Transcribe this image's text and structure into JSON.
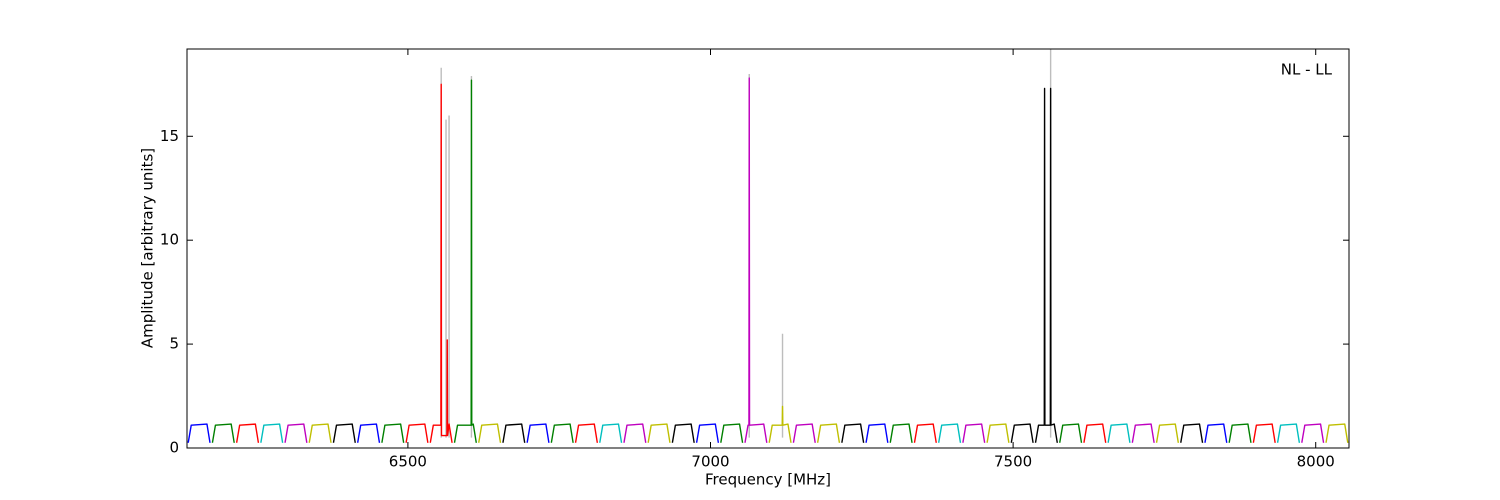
{
  "chart_data": {
    "type": "line",
    "annotation": "NL - LL",
    "x_label": "Frequency [MHz]",
    "y_label": "Amplitude [arbitrary units]",
    "xlim": [
      6135,
      8055
    ],
    "ylim": [
      0,
      19.2
    ],
    "xticks": [
      6500,
      7000,
      7500,
      8000
    ],
    "yticks": [
      0,
      5,
      10,
      15
    ],
    "series": [
      {
        "color": "#bdbdbd",
        "x": [
          6555,
          6555,
          6555,
          6563,
          6563,
          6563,
          6568,
          6568,
          6568,
          6605,
          6605,
          6605,
          7064,
          7064,
          7064,
          7119,
          7119,
          7119,
          7562,
          7562
        ],
        "values": [
          0.5,
          18.3,
          null,
          0.5,
          15.8,
          null,
          0.5,
          16,
          null,
          0.5,
          17.9,
          null,
          0.5,
          18,
          null,
          0.5,
          5.5,
          null,
          0.5,
          19.2
        ]
      },
      {
        "color": "#0000ff",
        "x": [
          6137,
          6142,
          6168,
          6173,
          6175,
          6417,
          6422,
          6448,
          6453,
          6455,
          6697,
          6702,
          6728,
          6733,
          6735,
          6977,
          6982,
          7008,
          7013,
          7015,
          7257,
          7262,
          7288,
          7293,
          7295,
          7817,
          7822,
          7848,
          7853
        ],
        "values": [
          0.25,
          1.1,
          1.15,
          0.25,
          null,
          0.25,
          1.1,
          1.15,
          0.25,
          null,
          0.25,
          1.1,
          1.15,
          0.25,
          null,
          0.25,
          1.1,
          1.15,
          0.25,
          null,
          0.25,
          1.1,
          1.15,
          0.25,
          null,
          0.25,
          1.1,
          1.15,
          0.25
        ]
      },
      {
        "color": "#008000",
        "x": [
          6177,
          6182,
          6208,
          6213,
          6215,
          6457,
          6462,
          6488,
          6493,
          6495,
          6577,
          6582,
          6604.5,
          6605,
          6605.5,
          6608,
          6613,
          6615,
          6737,
          6742,
          6768,
          6773,
          6775,
          7017,
          7022,
          7048,
          7053,
          7055,
          7297,
          7302,
          7328,
          7333,
          7335,
          7577,
          7582,
          7608,
          7613,
          7615,
          7857,
          7862,
          7888,
          7893
        ],
        "values": [
          0.25,
          1.1,
          1.15,
          0.25,
          null,
          0.25,
          1.1,
          1.15,
          0.25,
          null,
          0.25,
          1.1,
          1.1,
          17.7,
          1.1,
          1.15,
          0.25,
          null,
          0.25,
          1.1,
          1.15,
          0.25,
          null,
          0.25,
          1.1,
          1.15,
          0.25,
          null,
          0.25,
          1.1,
          1.15,
          0.25,
          null,
          0.25,
          1.1,
          1.15,
          0.25,
          null,
          0.25,
          1.1,
          1.15,
          0.25
        ]
      },
      {
        "color": "#ff0000",
        "x": [
          6217,
          6222,
          6248,
          6253,
          6255,
          6497,
          6502,
          6528,
          6533,
          6535,
          6537,
          6542,
          6554.5,
          6555,
          6555.5,
          6564.5,
          6565,
          6565.5,
          6568,
          6573,
          6575,
          6777,
          6782,
          6808,
          6813,
          6815,
          7337,
          7342,
          7368,
          7373,
          7375,
          7617,
          7622,
          7648,
          7653,
          7655,
          7897,
          7902,
          7928,
          7933
        ],
        "values": [
          0.25,
          1.1,
          1.15,
          0.25,
          null,
          0.25,
          1.1,
          1.15,
          0.25,
          null,
          0.25,
          1.1,
          1.1,
          17.5,
          0.6,
          0.6,
          5.2,
          0.6,
          1.15,
          0.25,
          null,
          0.25,
          1.1,
          1.15,
          0.25,
          null,
          0.25,
          1.1,
          1.15,
          0.25,
          null,
          0.25,
          1.1,
          1.15,
          0.25,
          null,
          0.25,
          1.1,
          1.15,
          0.25
        ]
      },
      {
        "color": "#00bfbf",
        "x": [
          6257,
          6262,
          6288,
          6293,
          6295,
          6817,
          6822,
          6848,
          6853,
          6855,
          7377,
          7382,
          7408,
          7413,
          7415,
          7657,
          7662,
          7688,
          7693,
          7695,
          7937,
          7942,
          7968,
          7973
        ],
        "values": [
          0.25,
          1.1,
          1.15,
          0.25,
          null,
          0.25,
          1.1,
          1.15,
          0.25,
          null,
          0.25,
          1.1,
          1.15,
          0.25,
          null,
          0.25,
          1.1,
          1.15,
          0.25,
          null,
          0.25,
          1.1,
          1.15,
          0.25
        ]
      },
      {
        "color": "#bf00bf",
        "x": [
          6297,
          6302,
          6328,
          6333,
          6335,
          6857,
          6862,
          6888,
          6893,
          6895,
          7057,
          7062,
          7063.5,
          7064,
          7064.5,
          7088,
          7093,
          7095,
          7137,
          7142,
          7168,
          7173,
          7175,
          7417,
          7422,
          7448,
          7453,
          7455,
          7697,
          7702,
          7728,
          7733,
          7735,
          7977,
          7982,
          8008,
          8013
        ],
        "values": [
          0.25,
          1.1,
          1.15,
          0.25,
          null,
          0.25,
          1.1,
          1.15,
          0.25,
          null,
          0.25,
          1.1,
          1.1,
          17.8,
          1.1,
          1.15,
          0.25,
          null,
          0.25,
          1.1,
          1.15,
          0.25,
          null,
          0.25,
          1.1,
          1.15,
          0.25,
          null,
          0.25,
          1.1,
          1.15,
          0.25,
          null,
          0.25,
          1.1,
          1.15,
          0.25
        ]
      },
      {
        "color": "#bfbf00",
        "x": [
          6337,
          6342,
          6368,
          6373,
          6375,
          6617,
          6622,
          6648,
          6653,
          6655,
          6897,
          6902,
          6928,
          6933,
          6935,
          7097,
          7102,
          7118.5,
          7119,
          7119.5,
          7128,
          7133,
          7135,
          7177,
          7182,
          7208,
          7213,
          7215,
          7457,
          7462,
          7488,
          7493,
          7495,
          7737,
          7742,
          7768,
          7773,
          7775,
          8017,
          8022,
          8048,
          8053
        ],
        "values": [
          0.25,
          1.1,
          1.15,
          0.25,
          null,
          0.25,
          1.1,
          1.15,
          0.25,
          null,
          0.25,
          1.1,
          1.15,
          0.25,
          null,
          0.25,
          1.1,
          1.1,
          2.0,
          1.1,
          1.15,
          0.25,
          null,
          0.25,
          1.1,
          1.15,
          0.25,
          null,
          0.25,
          1.1,
          1.15,
          0.25,
          null,
          0.25,
          1.1,
          1.15,
          0.25,
          null,
          0.25,
          1.1,
          1.15,
          0.25
        ]
      },
      {
        "color": "#000000",
        "x": [
          6377,
          6382,
          6408,
          6413,
          6415,
          6657,
          6662,
          6688,
          6693,
          6695,
          6937,
          6942,
          6968,
          6973,
          6975,
          7217,
          7222,
          7248,
          7253,
          7255,
          7497,
          7502,
          7528,
          7533,
          7535,
          7537,
          7542,
          7551.5,
          7552,
          7552.5,
          7561.5,
          7562,
          7562.5,
          7568,
          7573,
          7575,
          7777,
          7782,
          7808,
          7813
        ],
        "values": [
          0.25,
          1.1,
          1.15,
          0.25,
          null,
          0.25,
          1.1,
          1.15,
          0.25,
          null,
          0.25,
          1.1,
          1.15,
          0.25,
          null,
          0.25,
          1.1,
          1.15,
          0.25,
          null,
          0.25,
          1.1,
          1.15,
          0.25,
          null,
          0.25,
          1.1,
          1.1,
          17.3,
          1.1,
          1.1,
          17.3,
          1.1,
          1.15,
          0.25,
          null,
          0.25,
          1.1,
          1.15,
          0.25
        ]
      }
    ]
  }
}
